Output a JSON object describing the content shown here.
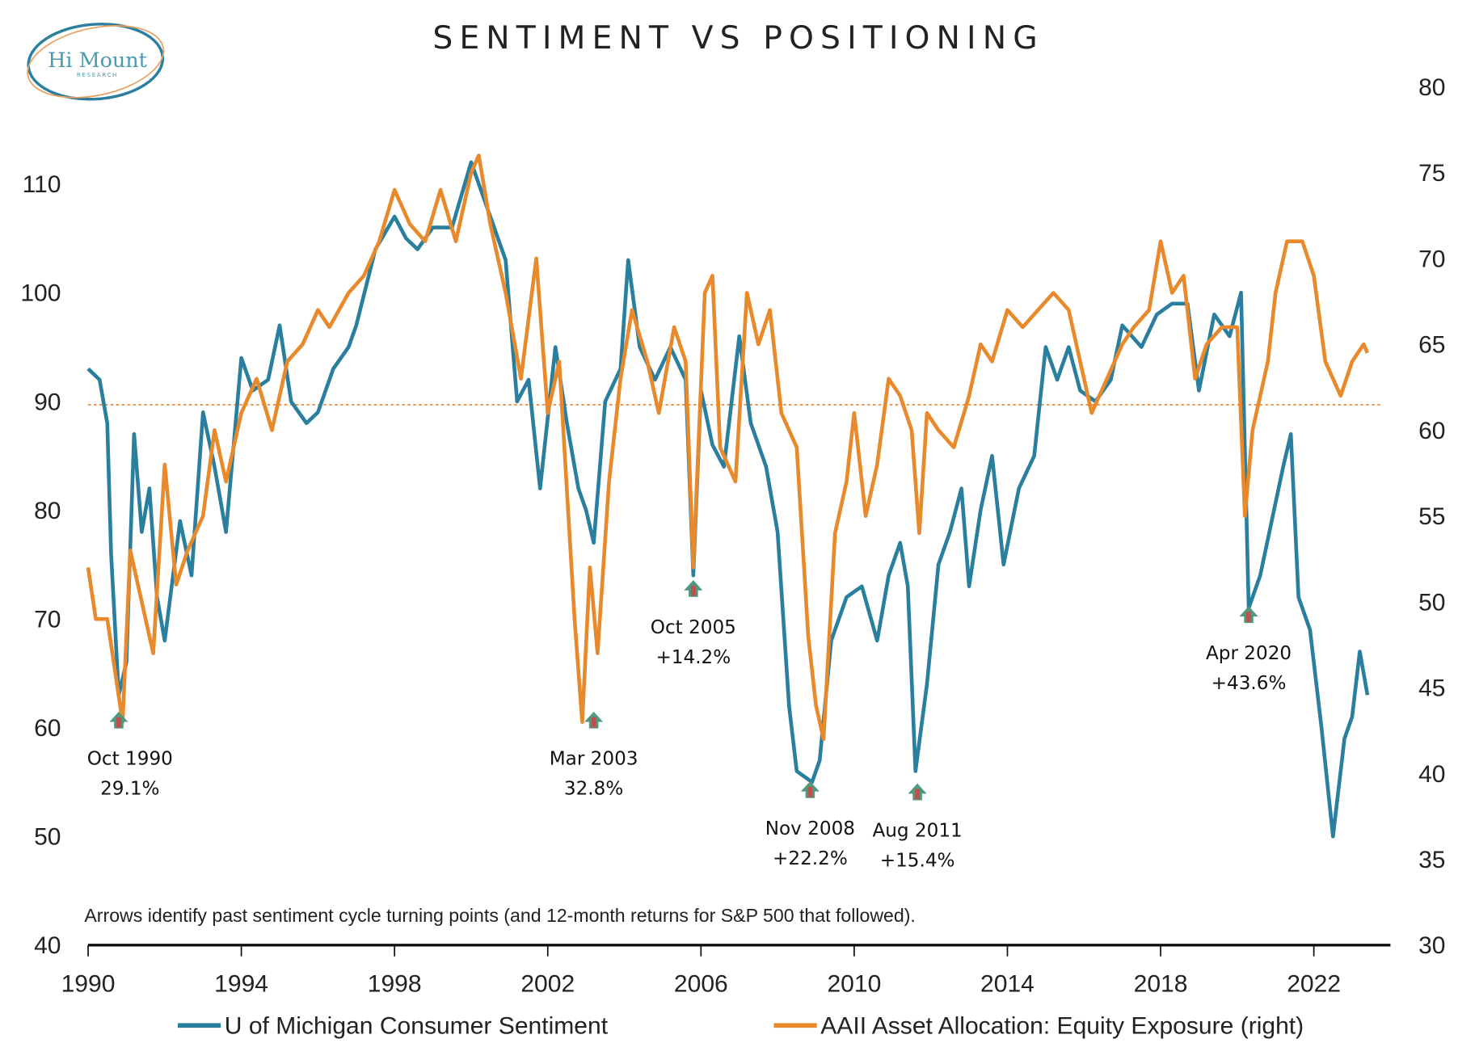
{
  "logo": {
    "name": "Hi Mount",
    "sub": "RESEARCH"
  },
  "chart_data": {
    "type": "line",
    "title": "SENTIMENT VS POSITIONING",
    "footnote": "Arrows identify past sentiment cycle turning points (and 12-month returns for S&P 500 that followed).",
    "xlim": [
      1990,
      2024
    ],
    "x_ticks": [
      "1990",
      "1994",
      "1998",
      "2002",
      "2006",
      "2010",
      "2014",
      "2018",
      "2022"
    ],
    "y_left": {
      "ylim": [
        40,
        110
      ],
      "ticks": [
        "40",
        "50",
        "60",
        "70",
        "80",
        "90",
        "100",
        "110"
      ]
    },
    "y_right": {
      "ylim": [
        30,
        80
      ],
      "ticks": [
        "30",
        "35",
        "40",
        "45",
        "50",
        "55",
        "60",
        "65",
        "70",
        "75",
        "80"
      ]
    },
    "reference_line": {
      "axis": "left",
      "value": 89.7,
      "style": "dotted",
      "color": "#e8822a"
    },
    "legend_position": "bottom",
    "series": [
      {
        "name": "U of Michigan Consumer Sentiment",
        "axis": "left",
        "color": "#2a7f9e",
        "points": [
          [
            1990.0,
            93
          ],
          [
            1990.3,
            92
          ],
          [
            1990.5,
            88
          ],
          [
            1990.6,
            76
          ],
          [
            1990.8,
            63
          ],
          [
            1991.0,
            66
          ],
          [
            1991.2,
            87
          ],
          [
            1991.4,
            78
          ],
          [
            1991.6,
            82
          ],
          [
            1991.8,
            72
          ],
          [
            1992.0,
            68
          ],
          [
            1992.4,
            79
          ],
          [
            1992.7,
            74
          ],
          [
            1993.0,
            89
          ],
          [
            1993.3,
            84
          ],
          [
            1993.6,
            78
          ],
          [
            1994.0,
            94
          ],
          [
            1994.3,
            91
          ],
          [
            1994.7,
            92
          ],
          [
            1995.0,
            97
          ],
          [
            1995.3,
            90
          ],
          [
            1995.7,
            88
          ],
          [
            1996.0,
            89
          ],
          [
            1996.4,
            93
          ],
          [
            1996.8,
            95
          ],
          [
            1997.0,
            97
          ],
          [
            1997.5,
            104
          ],
          [
            1998.0,
            107
          ],
          [
            1998.3,
            105
          ],
          [
            1998.6,
            104
          ],
          [
            1999.0,
            106
          ],
          [
            1999.5,
            106
          ],
          [
            2000.0,
            112
          ],
          [
            2000.4,
            108
          ],
          [
            2000.9,
            103
          ],
          [
            2001.2,
            90
          ],
          [
            2001.5,
            92
          ],
          [
            2001.8,
            82
          ],
          [
            2002.2,
            95
          ],
          [
            2002.5,
            88
          ],
          [
            2002.8,
            82
          ],
          [
            2003.0,
            80
          ],
          [
            2003.2,
            77
          ],
          [
            2003.5,
            90
          ],
          [
            2003.9,
            93
          ],
          [
            2004.1,
            103
          ],
          [
            2004.4,
            95
          ],
          [
            2004.8,
            92
          ],
          [
            2005.2,
            95
          ],
          [
            2005.6,
            92
          ],
          [
            2005.8,
            74
          ],
          [
            2006.0,
            91
          ],
          [
            2006.3,
            86
          ],
          [
            2006.6,
            84
          ],
          [
            2007.0,
            96
          ],
          [
            2007.3,
            88
          ],
          [
            2007.7,
            84
          ],
          [
            2008.0,
            78
          ],
          [
            2008.3,
            62
          ],
          [
            2008.5,
            56
          ],
          [
            2008.9,
            55
          ],
          [
            2009.1,
            57
          ],
          [
            2009.4,
            68
          ],
          [
            2009.8,
            72
          ],
          [
            2010.2,
            73
          ],
          [
            2010.6,
            68
          ],
          [
            2010.9,
            74
          ],
          [
            2011.2,
            77
          ],
          [
            2011.4,
            73
          ],
          [
            2011.6,
            56
          ],
          [
            2011.9,
            64
          ],
          [
            2012.2,
            75
          ],
          [
            2012.5,
            78
          ],
          [
            2012.8,
            82
          ],
          [
            2013.0,
            73
          ],
          [
            2013.3,
            80
          ],
          [
            2013.6,
            85
          ],
          [
            2013.9,
            75
          ],
          [
            2014.3,
            82
          ],
          [
            2014.7,
            85
          ],
          [
            2015.0,
            95
          ],
          [
            2015.3,
            92
          ],
          [
            2015.6,
            95
          ],
          [
            2015.9,
            91
          ],
          [
            2016.3,
            90
          ],
          [
            2016.7,
            92
          ],
          [
            2017.0,
            97
          ],
          [
            2017.5,
            95
          ],
          [
            2017.9,
            98
          ],
          [
            2018.3,
            99
          ],
          [
            2018.7,
            99
          ],
          [
            2019.0,
            91
          ],
          [
            2019.4,
            98
          ],
          [
            2019.8,
            96
          ],
          [
            2020.1,
            100
          ],
          [
            2020.3,
            71
          ],
          [
            2020.6,
            74
          ],
          [
            2020.9,
            79
          ],
          [
            2021.2,
            84
          ],
          [
            2021.4,
            87
          ],
          [
            2021.6,
            72
          ],
          [
            2021.9,
            69
          ],
          [
            2022.2,
            60
          ],
          [
            2022.5,
            50
          ],
          [
            2022.8,
            59
          ],
          [
            2023.0,
            61
          ],
          [
            2023.2,
            67
          ],
          [
            2023.4,
            63
          ]
        ]
      },
      {
        "name": "AAII Asset Allocation: Equity Exposure (right)",
        "axis": "right",
        "color": "#e8892c",
        "points": [
          [
            1990.0,
            52
          ],
          [
            1990.2,
            49
          ],
          [
            1990.5,
            49
          ],
          [
            1990.7,
            46
          ],
          [
            1990.9,
            43
          ],
          [
            1991.1,
            53
          ],
          [
            1991.4,
            50
          ],
          [
            1991.7,
            47
          ],
          [
            1992.0,
            58
          ],
          [
            1992.3,
            51
          ],
          [
            1992.6,
            53
          ],
          [
            1993.0,
            55
          ],
          [
            1993.3,
            60
          ],
          [
            1993.6,
            57
          ],
          [
            1994.0,
            61
          ],
          [
            1994.4,
            63
          ],
          [
            1994.8,
            60
          ],
          [
            1995.2,
            64
          ],
          [
            1995.6,
            65
          ],
          [
            1996.0,
            67
          ],
          [
            1996.3,
            66
          ],
          [
            1996.8,
            68
          ],
          [
            1997.2,
            69
          ],
          [
            1997.6,
            71
          ],
          [
            1998.0,
            74
          ],
          [
            1998.4,
            72
          ],
          [
            1998.8,
            71
          ],
          [
            1999.2,
            74
          ],
          [
            1999.6,
            71
          ],
          [
            2000.0,
            75
          ],
          [
            2000.2,
            76
          ],
          [
            2000.5,
            72
          ],
          [
            2000.9,
            68
          ],
          [
            2001.3,
            63
          ],
          [
            2001.7,
            70
          ],
          [
            2002.0,
            61
          ],
          [
            2002.3,
            64
          ],
          [
            2002.7,
            49
          ],
          [
            2002.9,
            43
          ],
          [
            2003.1,
            52
          ],
          [
            2003.3,
            47
          ],
          [
            2003.6,
            57
          ],
          [
            2003.9,
            63
          ],
          [
            2004.2,
            67
          ],
          [
            2004.6,
            64
          ],
          [
            2004.9,
            61
          ],
          [
            2005.3,
            66
          ],
          [
            2005.6,
            64
          ],
          [
            2005.8,
            52
          ],
          [
            2006.1,
            68
          ],
          [
            2006.3,
            69
          ],
          [
            2006.5,
            59
          ],
          [
            2006.9,
            57
          ],
          [
            2007.2,
            68
          ],
          [
            2007.5,
            65
          ],
          [
            2007.8,
            67
          ],
          [
            2008.1,
            61
          ],
          [
            2008.5,
            59
          ],
          [
            2008.8,
            48
          ],
          [
            2009.0,
            44
          ],
          [
            2009.2,
            42
          ],
          [
            2009.5,
            54
          ],
          [
            2009.8,
            57
          ],
          [
            2010.0,
            61
          ],
          [
            2010.3,
            55
          ],
          [
            2010.6,
            58
          ],
          [
            2010.9,
            63
          ],
          [
            2011.2,
            62
          ],
          [
            2011.5,
            60
          ],
          [
            2011.7,
            54
          ],
          [
            2011.9,
            61
          ],
          [
            2012.2,
            60
          ],
          [
            2012.6,
            59
          ],
          [
            2013.0,
            62
          ],
          [
            2013.3,
            65
          ],
          [
            2013.6,
            64
          ],
          [
            2014.0,
            67
          ],
          [
            2014.4,
            66
          ],
          [
            2014.8,
            67
          ],
          [
            2015.2,
            68
          ],
          [
            2015.6,
            67
          ],
          [
            2015.9,
            64
          ],
          [
            2016.2,
            61
          ],
          [
            2016.6,
            63
          ],
          [
            2017.0,
            65
          ],
          [
            2017.3,
            66
          ],
          [
            2017.7,
            67
          ],
          [
            2018.0,
            71
          ],
          [
            2018.3,
            68
          ],
          [
            2018.6,
            69
          ],
          [
            2018.9,
            63
          ],
          [
            2019.2,
            65
          ],
          [
            2019.6,
            66
          ],
          [
            2020.0,
            66
          ],
          [
            2020.2,
            55
          ],
          [
            2020.4,
            60
          ],
          [
            2020.8,
            64
          ],
          [
            2021.0,
            68
          ],
          [
            2021.3,
            71
          ],
          [
            2021.7,
            71
          ],
          [
            2022.0,
            69
          ],
          [
            2022.3,
            64
          ],
          [
            2022.7,
            62
          ],
          [
            2023.0,
            64
          ],
          [
            2023.3,
            65
          ],
          [
            2023.4,
            64.5
          ]
        ]
      }
    ],
    "annotations": [
      {
        "date": "Oct 1990",
        "return": "29.1%",
        "x": 1990.8,
        "y": 60.7
      },
      {
        "date": "Mar 2003",
        "return": "32.8%",
        "x": 2003.2,
        "y": 60.7
      },
      {
        "date": "Oct 2005",
        "return": "+14.2%",
        "x": 2005.8,
        "y": 72.8
      },
      {
        "date": "Nov 2008",
        "return": "+22.2%",
        "x": 2008.85,
        "y": 54.3
      },
      {
        "date": "Aug 2011",
        "return": "+15.4%",
        "x": 2011.65,
        "y": 54.1
      },
      {
        "date": "Apr 2020",
        "return": "+43.6%",
        "x": 2020.3,
        "y": 70.4
      }
    ]
  }
}
